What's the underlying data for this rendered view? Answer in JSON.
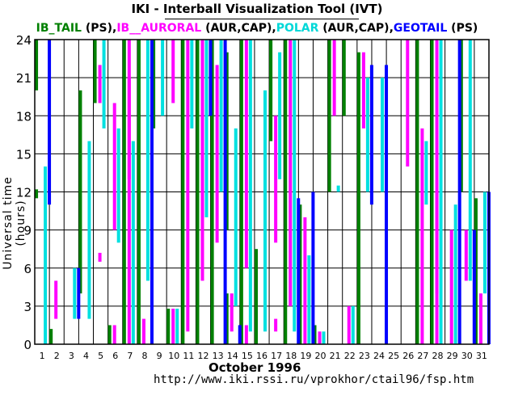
{
  "chart_data": {
    "type": "bar",
    "title": "IKI - Interball Visualization Tool (IVT)",
    "legend": [
      {
        "name": "IB_TAIL",
        "suffix": " (PS),",
        "color": "#008000"
      },
      {
        "name": "IB__AURORAL",
        "suffix": " (AUR,CAP),",
        "color": "#ff00ff"
      },
      {
        "name": "POLAR",
        "suffix": " (AUR,CAP),",
        "color": "#00e0e0"
      },
      {
        "name": "GEOTAIL",
        "suffix": " (PS)",
        "color": "#0000ff"
      }
    ],
    "ylabel": "Universal time  (hours)",
    "xlabel": "October    1996",
    "source_url": "http://www.iki.rssi.ru/vprokhor/ctail96/fsp.htm",
    "ylim": [
      0,
      24
    ],
    "yticks": [
      0,
      3,
      6,
      9,
      12,
      15,
      18,
      21,
      24
    ],
    "days": [
      "1",
      "2",
      "3",
      "4",
      "5",
      "6",
      "7",
      "8",
      "9",
      "10",
      "11",
      "12",
      "13",
      "14",
      "15",
      "16",
      "17",
      "18",
      "19",
      "20",
      "21",
      "22",
      "23",
      "24",
      "25",
      "26",
      "27",
      "28",
      "29",
      "30",
      "31"
    ],
    "series": [
      {
        "name": "IB_TAIL",
        "color": "#008000",
        "intervals": [
          [
            1,
            20,
            24
          ],
          [
            1,
            11.5,
            12.2
          ],
          [
            2,
            0,
            1.2
          ],
          [
            4,
            4,
            20
          ],
          [
            5,
            19,
            24
          ],
          [
            6,
            0,
            1.5
          ],
          [
            7,
            0,
            24
          ],
          [
            8,
            0,
            24
          ],
          [
            9,
            17,
            24
          ],
          [
            10,
            0,
            2.8
          ],
          [
            11,
            0,
            24
          ],
          [
            12,
            0,
            24
          ],
          [
            13,
            0,
            24
          ],
          [
            14,
            0,
            4
          ],
          [
            14,
            9,
            23
          ],
          [
            15,
            0,
            24
          ],
          [
            16,
            0,
            7.5
          ],
          [
            17,
            16,
            24
          ],
          [
            18,
            0,
            24
          ],
          [
            19,
            0,
            11
          ],
          [
            20,
            0,
            1.5
          ],
          [
            21,
            12,
            24
          ],
          [
            22,
            18,
            24
          ],
          [
            23,
            0,
            23
          ],
          [
            27,
            0,
            24
          ],
          [
            28,
            0,
            24
          ],
          [
            30,
            12,
            24
          ],
          [
            31,
            0,
            11.5
          ]
        ]
      },
      {
        "name": "IB__AURORAL",
        "color": "#ff00ff",
        "intervals": [
          [
            2,
            2,
            5
          ],
          [
            5,
            6.5,
            7.2
          ],
          [
            5,
            19,
            22
          ],
          [
            6,
            9,
            19
          ],
          [
            6,
            0,
            1.5
          ],
          [
            7,
            13,
            21
          ],
          [
            7,
            0,
            24
          ],
          [
            10,
            19,
            24
          ],
          [
            10,
            0,
            2.8
          ],
          [
            11,
            1,
            24
          ],
          [
            12,
            5,
            24
          ],
          [
            13,
            8,
            22
          ],
          [
            14,
            1,
            4
          ],
          [
            15,
            6,
            24
          ],
          [
            17,
            8,
            18
          ],
          [
            17,
            1,
            2
          ],
          [
            18,
            3,
            24
          ],
          [
            19,
            0,
            10
          ],
          [
            20,
            0,
            1
          ],
          [
            21,
            18,
            24
          ],
          [
            22,
            0,
            3
          ],
          [
            23,
            17,
            23
          ],
          [
            26,
            14,
            24
          ],
          [
            27,
            0,
            12
          ],
          [
            28,
            0,
            24
          ],
          [
            29,
            0,
            9
          ],
          [
            31,
            0,
            4
          ]
        ]
      },
      {
        "name": "IB__AURORAL",
        "color": "#ff00ff",
        "intervals": [
          [
            8,
            0,
            2
          ],
          [
            15,
            0,
            1.5
          ],
          [
            27,
            12,
            17
          ],
          [
            28,
            4,
            12
          ],
          [
            30,
            5,
            9
          ]
        ]
      },
      {
        "name": "POLAR",
        "color": "#00e0e0",
        "intervals": [
          [
            1,
            0,
            14
          ],
          [
            3,
            2,
            6
          ],
          [
            4,
            2,
            16
          ],
          [
            5,
            17,
            24
          ],
          [
            6,
            8,
            17
          ],
          [
            7,
            0,
            16
          ],
          [
            8,
            5,
            24
          ],
          [
            9,
            18,
            24
          ],
          [
            10,
            0,
            2.8
          ],
          [
            11,
            17,
            24
          ],
          [
            12,
            10,
            24
          ],
          [
            13,
            12,
            24
          ],
          [
            14,
            3,
            17
          ],
          [
            15,
            1,
            24
          ],
          [
            16,
            1,
            20
          ],
          [
            17,
            13,
            23
          ],
          [
            18,
            1,
            24
          ],
          [
            19,
            0,
            7
          ],
          [
            20,
            0,
            1
          ],
          [
            21,
            12,
            12.5
          ],
          [
            22,
            0,
            3
          ],
          [
            23,
            12,
            21
          ],
          [
            24,
            12,
            21
          ],
          [
            27,
            11,
            16
          ],
          [
            28,
            0,
            24
          ],
          [
            29,
            0,
            11
          ],
          [
            30,
            5,
            24
          ],
          [
            31,
            4,
            12
          ]
        ]
      },
      {
        "name": "GEOTAIL",
        "color": "#0000ff",
        "intervals": [
          [
            1,
            11,
            24
          ],
          [
            3,
            2,
            6
          ],
          [
            8,
            0,
            24
          ],
          [
            12,
            18,
            24
          ],
          [
            13,
            0,
            24
          ],
          [
            14,
            0,
            1.5
          ],
          [
            18,
            0,
            11.5
          ],
          [
            19,
            0,
            12
          ],
          [
            23,
            11,
            22
          ],
          [
            24,
            0,
            22
          ],
          [
            29,
            0,
            24
          ],
          [
            30,
            0,
            9
          ],
          [
            31,
            0,
            12
          ]
        ]
      }
    ]
  }
}
